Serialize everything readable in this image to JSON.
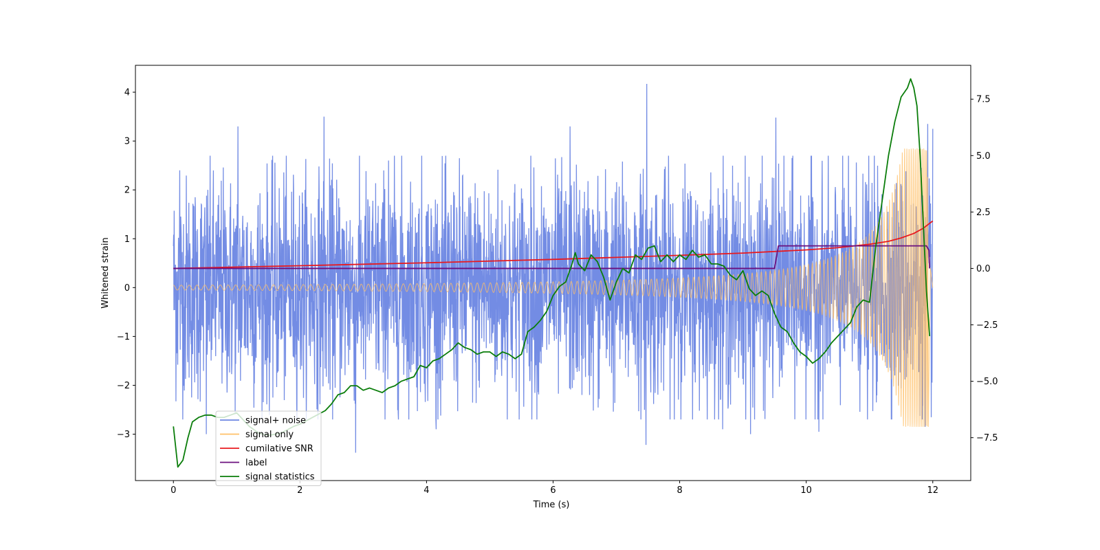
{
  "chart_data": {
    "type": "line",
    "xlabel": "Time (s)",
    "ylabel": "Whitened strain",
    "xlim": [
      -0.6,
      12.6
    ],
    "ylim_left": [
      -3.95,
      4.55
    ],
    "ylim_right": [
      -9.4,
      9.0
    ],
    "x_ticks": [
      0,
      2,
      4,
      6,
      8,
      10,
      12
    ],
    "x_tick_labels": [
      "0",
      "2",
      "4",
      "6",
      "8",
      "10",
      "12"
    ],
    "y_ticks_left": [
      -3,
      -2,
      -1,
      0,
      1,
      2,
      3,
      4
    ],
    "y_tick_labels_left": [
      "−3",
      "−2",
      "−1",
      "0",
      "1",
      "2",
      "3",
      "4"
    ],
    "y_ticks_right": [
      -7.5,
      -5.0,
      -2.5,
      0.0,
      2.5,
      5.0,
      7.5
    ],
    "y_tick_labels_right": [
      "−7.5",
      "−5.0",
      "−2.5",
      "0.0",
      "2.5",
      "5.0",
      "7.5"
    ],
    "legend_position": "lower-left",
    "series": [
      {
        "name": "signal+ noise",
        "color": "#6b86e3",
        "axis": "left",
        "kind": "noise",
        "t_start": 0,
        "t_end": 12,
        "approx_upper_peaks": [
          [
            0.1,
            2.4
          ],
          [
            0.55,
            2.75
          ],
          [
            0.85,
            3.2
          ],
          [
            1.02,
            3.3
          ],
          [
            2.38,
            3.5
          ],
          [
            3.4,
            2.6
          ],
          [
            6.27,
            3.3
          ],
          [
            7.48,
            4.17
          ],
          [
            9.52,
            3.48
          ],
          [
            11.92,
            3.35
          ],
          [
            12.0,
            3.25
          ]
        ],
        "approx_lower_peaks": [
          [
            0.52,
            -3.0
          ],
          [
            1.35,
            -3.1
          ],
          [
            2.88,
            -3.38
          ],
          [
            4.15,
            -2.9
          ],
          [
            7.47,
            -3.22
          ],
          [
            8.68,
            -2.9
          ],
          [
            9.12,
            -3.0
          ],
          [
            10.2,
            -2.95
          ],
          [
            11.88,
            -2.85
          ]
        ],
        "typical_range": [
          -2.5,
          2.5
        ]
      },
      {
        "name": "signal only",
        "color": "#ffbf66",
        "axis": "left",
        "kind": "chirp",
        "t_start": 0,
        "t_end": 12,
        "t_coalescence": 12.0,
        "amplitude_start": 0.05,
        "amplitude_peak": 2.85,
        "min_value": -2.85
      },
      {
        "name": "cumilative SNR",
        "color": "#e8191e",
        "axis": "right",
        "x": [
          0,
          2,
          4,
          6,
          8,
          9,
          10,
          10.5,
          11,
          11.3,
          11.5,
          11.7,
          11.85,
          11.95,
          12.0
        ],
        "y": [
          0.0,
          0.12,
          0.25,
          0.4,
          0.58,
          0.68,
          0.82,
          0.92,
          1.07,
          1.2,
          1.35,
          1.55,
          1.78,
          2.0,
          2.1
        ]
      },
      {
        "name": "label",
        "color": "#6a0f7e",
        "axis": "right",
        "x": [
          0,
          9.5,
          9.56,
          11.9,
          11.94,
          11.95
        ],
        "y": [
          0.0,
          0.0,
          1.0,
          1.0,
          0.8,
          0.0
        ]
      },
      {
        "name": "signal statistics",
        "color": "#0a7d0a",
        "axis": "right",
        "x": [
          0.0,
          0.07,
          0.15,
          0.23,
          0.3,
          0.4,
          0.5,
          0.6,
          0.7,
          0.8,
          0.9,
          1.0,
          1.1,
          1.2,
          1.35,
          1.5,
          1.7,
          1.9,
          2.0,
          2.2,
          2.4,
          2.5,
          2.6,
          2.7,
          2.8,
          2.9,
          3.0,
          3.1,
          3.2,
          3.3,
          3.4,
          3.5,
          3.6,
          3.7,
          3.8,
          3.9,
          4.0,
          4.1,
          4.2,
          4.3,
          4.4,
          4.5,
          4.6,
          4.7,
          4.8,
          4.9,
          5.0,
          5.1,
          5.2,
          5.3,
          5.4,
          5.5,
          5.6,
          5.7,
          5.8,
          5.9,
          6.0,
          6.1,
          6.2,
          6.3,
          6.35,
          6.4,
          6.5,
          6.6,
          6.7,
          6.8,
          6.9,
          7.0,
          7.1,
          7.2,
          7.3,
          7.4,
          7.5,
          7.6,
          7.7,
          7.8,
          7.9,
          8.0,
          8.1,
          8.2,
          8.3,
          8.4,
          8.5,
          8.6,
          8.7,
          8.8,
          8.9,
          9.0,
          9.1,
          9.2,
          9.3,
          9.4,
          9.5,
          9.6,
          9.7,
          9.8,
          9.9,
          10.0,
          10.1,
          10.2,
          10.3,
          10.4,
          10.5,
          10.6,
          10.7,
          10.8,
          10.9,
          11.0,
          11.1,
          11.2,
          11.3,
          11.4,
          11.5,
          11.6,
          11.65,
          11.7,
          11.75,
          11.8,
          11.85,
          11.9,
          11.95
        ],
        "y": [
          -7.0,
          -8.8,
          -8.5,
          -7.5,
          -6.8,
          -6.6,
          -6.5,
          -6.5,
          -6.6,
          -6.6,
          -6.5,
          -6.4,
          -6.7,
          -7.0,
          -7.3,
          -7.4,
          -7.3,
          -7.0,
          -6.9,
          -6.6,
          -6.3,
          -6.0,
          -5.6,
          -5.5,
          -5.2,
          -5.2,
          -5.4,
          -5.3,
          -5.4,
          -5.5,
          -5.3,
          -5.2,
          -5.0,
          -4.9,
          -4.8,
          -4.3,
          -4.4,
          -4.1,
          -4.0,
          -3.8,
          -3.6,
          -3.3,
          -3.5,
          -3.6,
          -3.8,
          -3.7,
          -3.7,
          -3.9,
          -3.7,
          -3.8,
          -4.0,
          -3.8,
          -2.8,
          -2.6,
          -2.3,
          -1.9,
          -1.2,
          -0.8,
          -0.6,
          0.2,
          0.7,
          0.2,
          -0.1,
          0.6,
          0.3,
          -0.4,
          -1.4,
          -0.6,
          0.0,
          -0.2,
          0.6,
          0.4,
          0.9,
          1.0,
          0.3,
          0.6,
          0.3,
          0.6,
          0.4,
          0.8,
          0.5,
          0.6,
          0.2,
          0.2,
          0.1,
          -0.3,
          -0.5,
          -0.1,
          -0.9,
          -1.2,
          -1.0,
          -1.2,
          -2.0,
          -2.6,
          -2.8,
          -3.3,
          -3.7,
          -3.9,
          -4.2,
          -4.0,
          -3.7,
          -3.3,
          -3.0,
          -2.7,
          -2.4,
          -1.7,
          -1.4,
          -1.5,
          1.0,
          3.0,
          5.0,
          6.5,
          7.6,
          8.0,
          8.4,
          8.0,
          7.2,
          5.0,
          2.0,
          -1.0,
          -3.0
        ]
      }
    ]
  }
}
